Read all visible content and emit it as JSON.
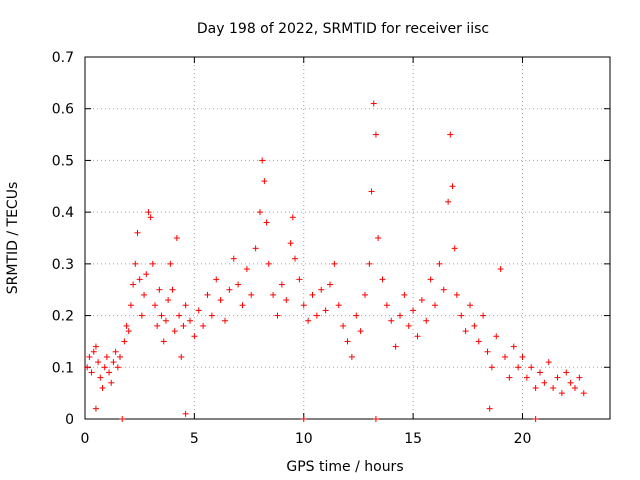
{
  "chart_data": {
    "type": "scatter",
    "title": "Day 198 of 2022, SRMTID for receiver iisc",
    "xlabel": "GPS time / hours",
    "ylabel": "SRMTID / TECUs",
    "xlim": [
      0,
      24
    ],
    "ylim": [
      0,
      0.7
    ],
    "xticks": [
      0,
      5,
      10,
      15,
      20
    ],
    "xtick_labels": [
      "0",
      "5",
      "10",
      "15",
      "20"
    ],
    "yticks": [
      0,
      0.1,
      0.2,
      0.3,
      0.4,
      0.5,
      0.6,
      0.7
    ],
    "ytick_labels": [
      "0",
      "0.1",
      "0.2",
      "0.3",
      "0.4",
      "0.5",
      "0.6",
      "0.7"
    ],
    "grid": true,
    "marker": "+",
    "marker_color": "#ff0000",
    "series": [
      {
        "name": "SRMTID",
        "points": [
          [
            0.1,
            0.1
          ],
          [
            0.2,
            0.12
          ],
          [
            0.3,
            0.09
          ],
          [
            0.4,
            0.13
          ],
          [
            0.5,
            0.14
          ],
          [
            0.6,
            0.11
          ],
          [
            0.7,
            0.08
          ],
          [
            0.8,
            0.06
          ],
          [
            0.9,
            0.1
          ],
          [
            1.0,
            0.12
          ],
          [
            1.1,
            0.09
          ],
          [
            1.2,
            0.07
          ],
          [
            1.3,
            0.11
          ],
          [
            1.4,
            0.13
          ],
          [
            1.5,
            0.1
          ],
          [
            1.6,
            0.12
          ],
          [
            1.8,
            0.15
          ],
          [
            1.9,
            0.18
          ],
          [
            2.0,
            0.17
          ],
          [
            2.1,
            0.22
          ],
          [
            2.2,
            0.26
          ],
          [
            2.3,
            0.3
          ],
          [
            2.4,
            0.36
          ],
          [
            2.5,
            0.27
          ],
          [
            2.6,
            0.2
          ],
          [
            2.7,
            0.24
          ],
          [
            2.8,
            0.28
          ],
          [
            2.9,
            0.4
          ],
          [
            3.0,
            0.39
          ],
          [
            3.1,
            0.3
          ],
          [
            3.2,
            0.22
          ],
          [
            3.3,
            0.18
          ],
          [
            3.4,
            0.25
          ],
          [
            3.5,
            0.2
          ],
          [
            3.6,
            0.15
          ],
          [
            3.7,
            0.19
          ],
          [
            3.8,
            0.23
          ],
          [
            3.9,
            0.3
          ],
          [
            4.0,
            0.25
          ],
          [
            4.1,
            0.17
          ],
          [
            4.2,
            0.35
          ],
          [
            4.3,
            0.2
          ],
          [
            4.4,
            0.12
          ],
          [
            4.5,
            0.18
          ],
          [
            4.6,
            0.22
          ],
          [
            4.8,
            0.19
          ],
          [
            5.0,
            0.16
          ],
          [
            5.2,
            0.21
          ],
          [
            5.4,
            0.18
          ],
          [
            5.6,
            0.24
          ],
          [
            5.8,
            0.2
          ],
          [
            6.0,
            0.27
          ],
          [
            6.2,
            0.23
          ],
          [
            6.4,
            0.19
          ],
          [
            6.6,
            0.25
          ],
          [
            6.8,
            0.31
          ],
          [
            7.0,
            0.26
          ],
          [
            7.2,
            0.22
          ],
          [
            7.4,
            0.29
          ],
          [
            7.6,
            0.24
          ],
          [
            7.8,
            0.33
          ],
          [
            8.0,
            0.4
          ],
          [
            8.1,
            0.5
          ],
          [
            8.2,
            0.46
          ],
          [
            8.3,
            0.38
          ],
          [
            8.4,
            0.3
          ],
          [
            8.6,
            0.24
          ],
          [
            8.8,
            0.2
          ],
          [
            9.0,
            0.26
          ],
          [
            9.2,
            0.23
          ],
          [
            9.4,
            0.34
          ],
          [
            9.5,
            0.39
          ],
          [
            9.6,
            0.31
          ],
          [
            9.8,
            0.27
          ],
          [
            10.0,
            0.22
          ],
          [
            10.2,
            0.19
          ],
          [
            10.4,
            0.24
          ],
          [
            10.6,
            0.2
          ],
          [
            10.8,
            0.25
          ],
          [
            11.0,
            0.21
          ],
          [
            11.2,
            0.26
          ],
          [
            11.4,
            0.3
          ],
          [
            11.6,
            0.22
          ],
          [
            11.8,
            0.18
          ],
          [
            12.0,
            0.15
          ],
          [
            12.2,
            0.12
          ],
          [
            12.4,
            0.2
          ],
          [
            12.6,
            0.17
          ],
          [
            12.8,
            0.24
          ],
          [
            13.0,
            0.3
          ],
          [
            13.1,
            0.44
          ],
          [
            13.2,
            0.61
          ],
          [
            13.3,
            0.55
          ],
          [
            13.4,
            0.35
          ],
          [
            13.6,
            0.27
          ],
          [
            13.8,
            0.22
          ],
          [
            14.0,
            0.19
          ],
          [
            14.2,
            0.14
          ],
          [
            14.4,
            0.2
          ],
          [
            14.6,
            0.24
          ],
          [
            14.8,
            0.18
          ],
          [
            15.0,
            0.21
          ],
          [
            15.2,
            0.16
          ],
          [
            15.4,
            0.23
          ],
          [
            15.6,
            0.19
          ],
          [
            15.8,
            0.27
          ],
          [
            16.0,
            0.22
          ],
          [
            16.2,
            0.3
          ],
          [
            16.4,
            0.25
          ],
          [
            16.6,
            0.42
          ],
          [
            16.7,
            0.55
          ],
          [
            16.8,
            0.45
          ],
          [
            16.9,
            0.33
          ],
          [
            17.0,
            0.24
          ],
          [
            17.2,
            0.2
          ],
          [
            17.4,
            0.17
          ],
          [
            17.6,
            0.22
          ],
          [
            17.8,
            0.18
          ],
          [
            18.0,
            0.15
          ],
          [
            18.2,
            0.2
          ],
          [
            18.4,
            0.13
          ],
          [
            18.6,
            0.1
          ],
          [
            18.8,
            0.16
          ],
          [
            19.0,
            0.29
          ],
          [
            19.2,
            0.12
          ],
          [
            19.4,
            0.08
          ],
          [
            19.6,
            0.14
          ],
          [
            19.8,
            0.1
          ],
          [
            20.0,
            0.12
          ],
          [
            20.2,
            0.08
          ],
          [
            20.4,
            0.1
          ],
          [
            20.6,
            0.06
          ],
          [
            20.8,
            0.09
          ],
          [
            21.0,
            0.07
          ],
          [
            21.2,
            0.11
          ],
          [
            21.4,
            0.06
          ],
          [
            21.6,
            0.08
          ],
          [
            21.8,
            0.05
          ],
          [
            22.0,
            0.09
          ],
          [
            22.2,
            0.07
          ],
          [
            22.4,
            0.06
          ],
          [
            22.6,
            0.08
          ],
          [
            22.8,
            0.05
          ],
          [
            0.5,
            0.02
          ],
          [
            1.7,
            0.0
          ],
          [
            4.6,
            0.01
          ],
          [
            10.0,
            0.0
          ],
          [
            13.3,
            0.0
          ],
          [
            18.5,
            0.02
          ],
          [
            20.6,
            0.0
          ]
        ]
      }
    ]
  }
}
